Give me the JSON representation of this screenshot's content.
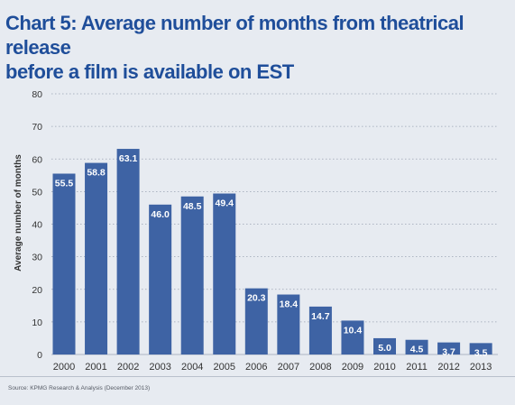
{
  "title_line1": "Chart 5: Average number of months from theatrical release",
  "title_line2": "before a film is available on EST",
  "source": "Source: KPMG Research & Analysis (December 2013)",
  "colors": {
    "background": "#e7ebf1",
    "bar": "#3e63a4",
    "title": "#1f4e9a",
    "label_text": "#ffffff",
    "axis_text": "#333333"
  },
  "chart_data": {
    "type": "bar",
    "title": "Chart 5: Average number of months from theatrical release before a film is available on EST",
    "ylabel": "Average number of months",
    "xlabel": "",
    "categories": [
      "2000",
      "2001",
      "2002",
      "2003",
      "2004",
      "2005",
      "2006",
      "2007",
      "2008",
      "2009",
      "2010",
      "2011",
      "2012",
      "2013"
    ],
    "values": [
      55.5,
      58.8,
      63.1,
      46.0,
      48.5,
      49.4,
      20.3,
      18.4,
      14.7,
      10.4,
      5.0,
      4.5,
      3.7,
      3.5
    ],
    "value_labels": [
      "55.5",
      "58.8",
      "63.1",
      "46.0",
      "48.5",
      "49.4",
      "20.3",
      "18.4",
      "14.7",
      "10.4",
      "5.0",
      "4.5",
      "3.7",
      "3.5"
    ],
    "ylim": [
      0,
      80
    ],
    "yticks": [
      0,
      10,
      20,
      30,
      40,
      50,
      60,
      70,
      80
    ],
    "grid": true,
    "legend": "none"
  }
}
